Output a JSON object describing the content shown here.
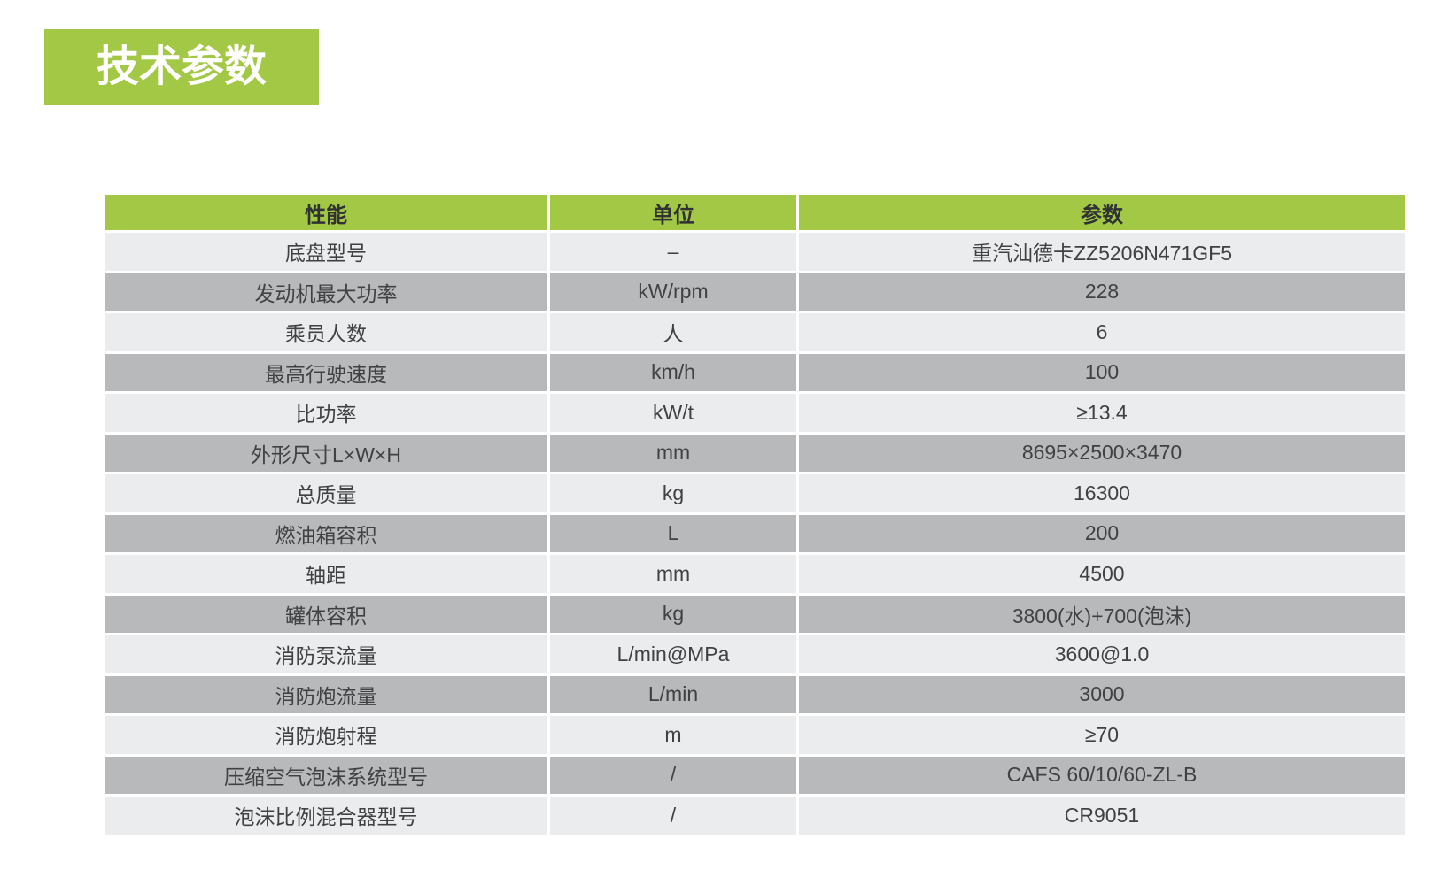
{
  "page": {
    "background": "#ffffff"
  },
  "title": {
    "text": "技术参数",
    "bg_color": "#a3c845",
    "text_color": "#ffffff"
  },
  "table": {
    "header_bg_color": "#a3c845",
    "header_text_color": "#2f3132",
    "row_light_bg_color": "#ebecee",
    "row_dark_bg_color": "#b8b9bb",
    "row_text_color": "#3f4143",
    "columns": [
      {
        "key": "name",
        "label": "性能"
      },
      {
        "key": "unit",
        "label": "单位"
      },
      {
        "key": "value",
        "label": "参数"
      }
    ],
    "rows": [
      {
        "name": "底盘型号",
        "unit": "–",
        "value": "重汽汕德卡ZZ5206N471GF5"
      },
      {
        "name": "发动机最大功率",
        "unit": "kW/rpm",
        "value": "228"
      },
      {
        "name": "乘员人数",
        "unit": "人",
        "value": "6"
      },
      {
        "name": "最高行驶速度",
        "unit": "km/h",
        "value": "100"
      },
      {
        "name": "比功率",
        "unit": "kW/t",
        "value": "≥13.4"
      },
      {
        "name": "外形尺寸L×W×H",
        "unit": "mm",
        "value": "8695×2500×3470"
      },
      {
        "name": "总质量",
        "unit": "kg",
        "value": "16300"
      },
      {
        "name": "燃油箱容积",
        "unit": "L",
        "value": "200"
      },
      {
        "name": "轴距",
        "unit": "mm",
        "value": "4500"
      },
      {
        "name": "罐体容积",
        "unit": "kg",
        "value": "3800(水)+700(泡沫)"
      },
      {
        "name": "消防泵流量",
        "unit": "L/min@MPa",
        "value": "3600@1.0"
      },
      {
        "name": "消防炮流量",
        "unit": "L/min",
        "value": "3000"
      },
      {
        "name": "消防炮射程",
        "unit": "m",
        "value": "≥70"
      },
      {
        "name": "压缩空气泡沫系统型号",
        "unit": "/",
        "value": "CAFS 60/10/60-ZL-B"
      },
      {
        "name": "泡沫比例混合器型号",
        "unit": "/",
        "value": "CR9051"
      }
    ]
  }
}
